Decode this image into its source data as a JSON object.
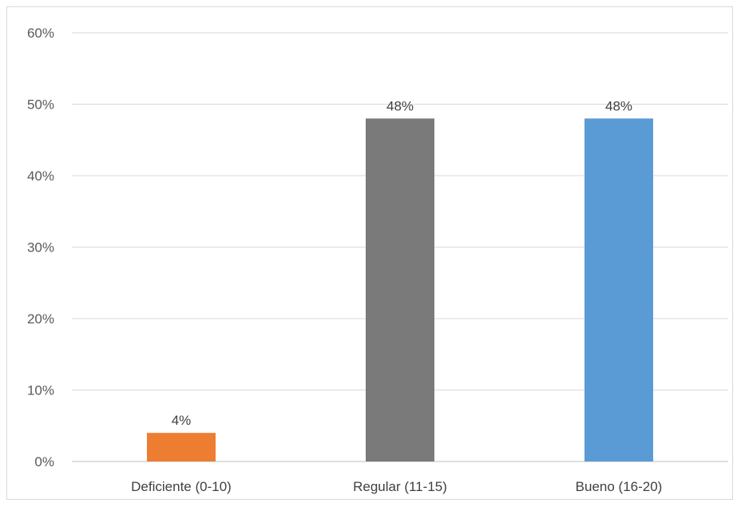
{
  "chart_data": {
    "type": "bar",
    "categories": [
      "Deficiente (0-10)",
      "Regular (11-15)",
      "Bueno (16-20)"
    ],
    "values": [
      4,
      48,
      48
    ],
    "value_labels": [
      "4%",
      "48%",
      "48%"
    ],
    "colors": [
      "#ed7d31",
      "#7a7a7a",
      "#5b9bd5"
    ],
    "ylim": [
      0,
      60
    ],
    "yticks": [
      "0%",
      "10%",
      "20%",
      "30%",
      "40%",
      "50%",
      "60%"
    ],
    "ytick_values": [
      0,
      10,
      20,
      30,
      40,
      50,
      60
    ],
    "grid": true,
    "title": "",
    "xlabel": "",
    "ylabel": ""
  }
}
